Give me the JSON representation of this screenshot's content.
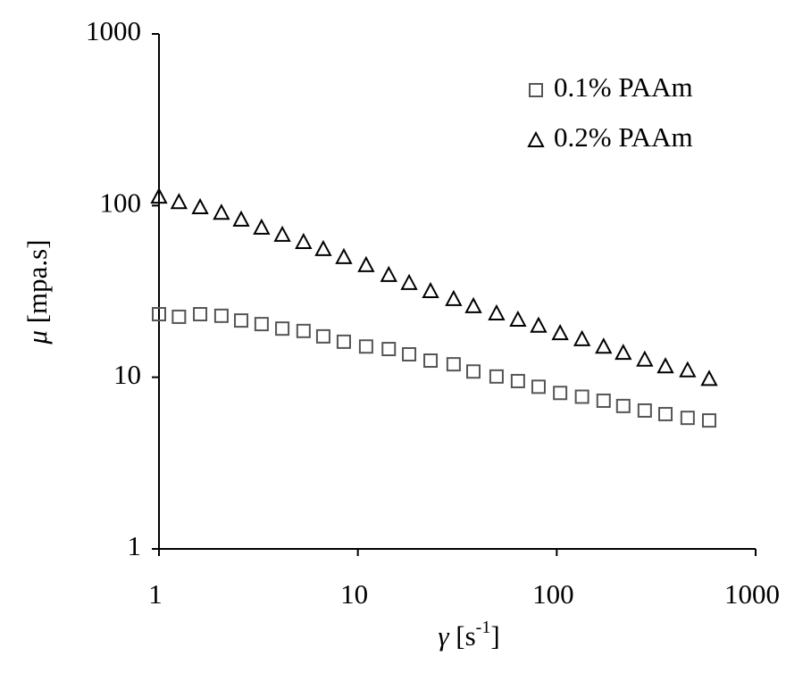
{
  "chart_data": {
    "type": "scatter",
    "xlabel": [
      "γ",
      "[s",
      "-1",
      "]"
    ],
    "ylabel": [
      "μ",
      "[mpa.s]"
    ],
    "log_x": true,
    "log_y": true,
    "grid": false,
    "legend": "upper right",
    "xlim": [
      1,
      1000
    ],
    "ylim": [
      1,
      1000
    ],
    "xticks": [
      1,
      10,
      100,
      1000
    ],
    "yticks": [
      1,
      10,
      100,
      1000
    ],
    "x": [
      1,
      1.26,
      1.61,
      2.06,
      2.59,
      3.28,
      4.17,
      5.33,
      6.7,
      8.5,
      11.0,
      14.3,
      18.1,
      23.2,
      30.3,
      38.1,
      49.8,
      63.8,
      81.0,
      104,
      134,
      172,
      216,
      277,
      352,
      455,
      584
    ],
    "series": [
      {
        "name": "0.1% PAAm",
        "marker": "square",
        "color": "#555555",
        "values": [
          23.3,
          22.5,
          23.3,
          22.8,
          21.4,
          20.4,
          19.2,
          18.6,
          17.3,
          16.1,
          15.1,
          14.6,
          13.6,
          12.5,
          11.9,
          10.8,
          10.1,
          9.5,
          8.8,
          8.1,
          7.7,
          7.3,
          6.8,
          6.4,
          6.1,
          5.8,
          5.6
        ]
      },
      {
        "name": "0.2% PAAm",
        "marker": "triangle",
        "color": "#000000",
        "values": [
          113,
          105,
          98,
          91,
          83,
          74.5,
          67.7,
          61.5,
          55.9,
          50.2,
          45.1,
          39.5,
          35.5,
          31.8,
          28.6,
          26.0,
          23.6,
          21.7,
          20.0,
          18.1,
          16.7,
          15.1,
          13.9,
          12.7,
          11.6,
          11.0,
          9.8
        ]
      }
    ]
  }
}
